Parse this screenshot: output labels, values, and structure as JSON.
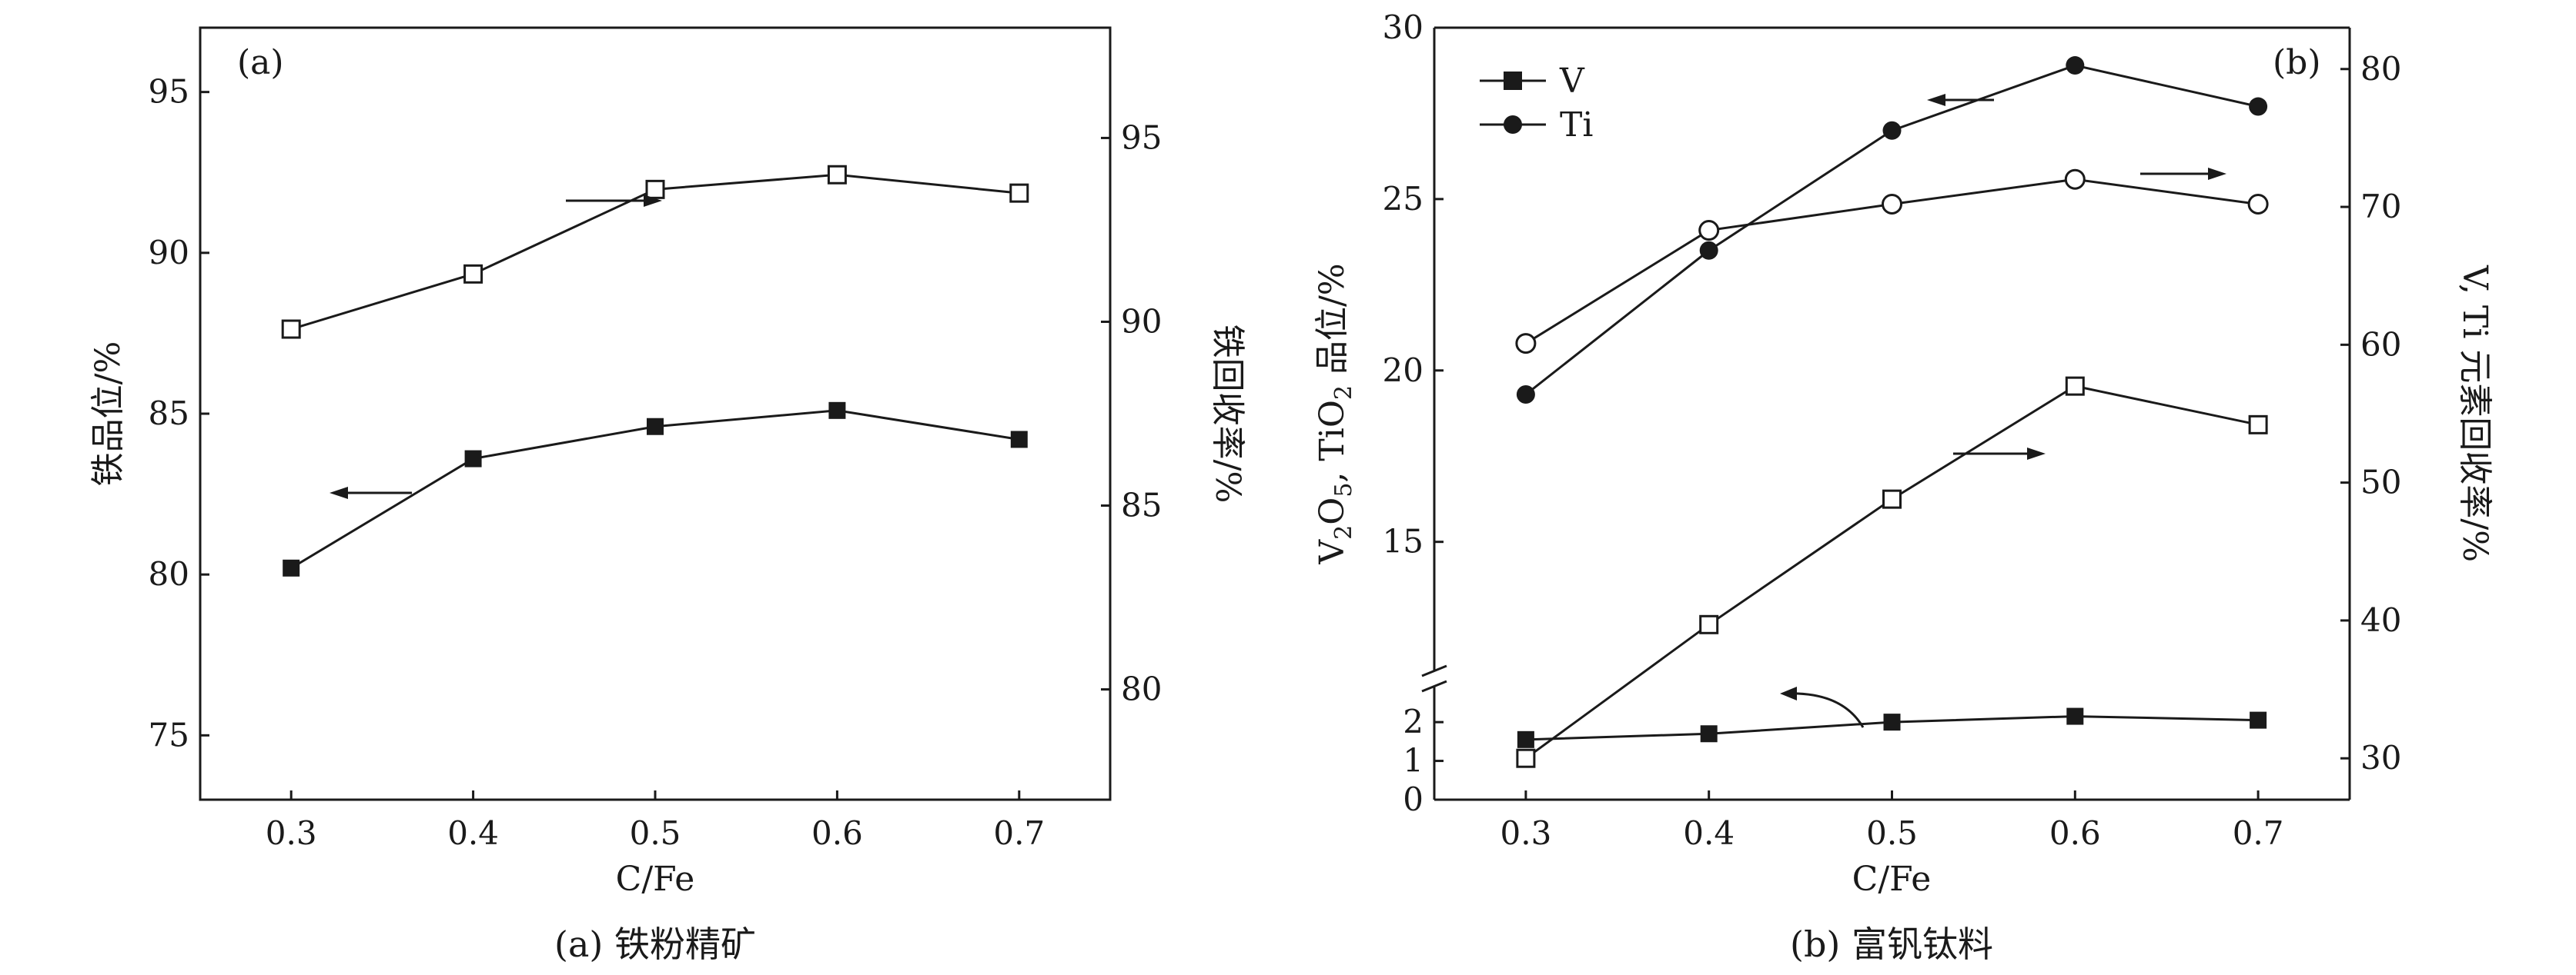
{
  "chart_data": [
    {
      "type": "line",
      "panel_label": "(a)",
      "caption": "(a) 铁粉精矿",
      "xlabel": "C/Fe",
      "ylabel": "铁品位/%",
      "y2label": "铁回收率/%",
      "x": [
        0.3,
        0.4,
        0.5,
        0.6,
        0.7
      ],
      "xticks": [
        "0.3",
        "0.4",
        "0.5",
        "0.6",
        "0.7"
      ],
      "xlim": [
        0.25,
        0.75
      ],
      "ylim": [
        73,
        97
      ],
      "yticks": [
        "75",
        "80",
        "85",
        "90",
        "95"
      ],
      "y2lim": [
        77,
        98
      ],
      "y2ticks": [
        "80",
        "85",
        "90",
        "95"
      ],
      "series": [
        {
          "axis": "left",
          "marker": "filled-square",
          "values": [
            80.2,
            83.6,
            84.6,
            85.1,
            84.2
          ]
        },
        {
          "axis": "right",
          "marker": "open-square",
          "values": [
            89.8,
            91.3,
            93.6,
            94.0,
            93.5
          ]
        }
      ]
    },
    {
      "type": "line",
      "panel_label": "(b)",
      "caption": "(b) 富钒钛料",
      "xlabel": "C/Fe",
      "ylabel_parts": [
        "V",
        "2",
        "O",
        "5",
        ", TiO",
        "2",
        " 品位/%"
      ],
      "y2label": "V, Ti 元素回收率/%",
      "x": [
        0.3,
        0.4,
        0.5,
        0.6,
        0.7
      ],
      "xticks": [
        "0.3",
        "0.4",
        "0.5",
        "0.6",
        "0.7"
      ],
      "xlim": [
        0.25,
        0.75
      ],
      "ylim_upper": [
        11,
        30
      ],
      "yticks_upper": [
        "15",
        "20",
        "25",
        "30"
      ],
      "ylim_lower": [
        0,
        2.3
      ],
      "yticks_lower": [
        "0",
        "1",
        "2"
      ],
      "axis_break": true,
      "y2lim": [
        27,
        83
      ],
      "y2ticks": [
        "30",
        "40",
        "50",
        "60",
        "70",
        "80"
      ],
      "legend": [
        "V",
        "Ti"
      ],
      "legend_position": "top-left",
      "series": [
        {
          "name": "V",
          "axis": "left",
          "marker": "filled-square",
          "values": [
            1.55,
            1.7,
            2.0,
            2.15,
            2.05
          ]
        },
        {
          "name": "Ti",
          "axis": "left",
          "marker": "filled-circle",
          "values": [
            19.3,
            23.5,
            27.0,
            28.9,
            27.7
          ]
        },
        {
          "name": "V",
          "axis": "right",
          "marker": "open-square",
          "values": [
            30.0,
            39.7,
            48.8,
            57.0,
            54.2
          ]
        },
        {
          "name": "Ti",
          "axis": "right",
          "marker": "open-circle",
          "values": [
            60.1,
            68.3,
            70.2,
            72.0,
            70.2
          ]
        }
      ]
    }
  ]
}
